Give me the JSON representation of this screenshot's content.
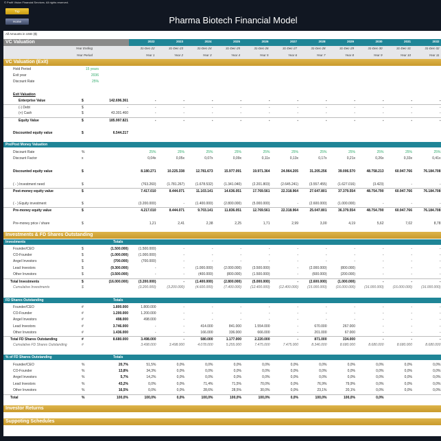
{
  "header": {
    "copyright": "© Profit Vision Financial Services. All rights reserved.",
    "top_button": "Top",
    "home_button": "Home",
    "title": "Pharma Biotech Financial Model",
    "amounts_note": "All Amounts in  USD ($)"
  },
  "timeline": {
    "title": "VC Valuation",
    "years": [
      "2022",
      "2023",
      "2024",
      "2025",
      "2026",
      "2027",
      "2028",
      "2029",
      "2030",
      "2031",
      "2032"
    ],
    "year_ending_label": "Year Ending",
    "dates": [
      "31-Dec-22",
      "31-Dec-23",
      "31-Dec-24",
      "31-Dec-25",
      "31-Dec-26",
      "31-Dec-27",
      "31-Dec-28",
      "31-Dec-29",
      "31-Dec-30",
      "31-Dec-31",
      "31-Dec-32"
    ],
    "period_label": "Year Period",
    "periods": [
      "Year 1",
      "Year 2",
      "Year 3",
      "Year 4",
      "Year 5",
      "Year 6",
      "Year 7",
      "Year 8",
      "Year 9",
      "Year 10",
      "Year 11"
    ]
  },
  "exit": {
    "title": "VC Valuation (Exit)",
    "inputs": [
      {
        "label": "Hold Period",
        "value": "15 years"
      },
      {
        "label": "Exit year",
        "value": "2036"
      },
      {
        "label": "Discount Rate",
        "value": "25%"
      }
    ],
    "exit_valuation_label": "Exit Valuation",
    "rows": [
      {
        "label": "Enterprise Value",
        "unit": "$",
        "total": "142.696.361",
        "values": [
          "-",
          "-",
          "-",
          "-",
          "-",
          "-",
          "-",
          "-",
          "-",
          "-",
          "-"
        ]
      },
      {
        "label": "(-) Debt",
        "unit": "$",
        "total": "-",
        "values": [
          "-",
          "-",
          "-",
          "-",
          "-",
          "-",
          "-",
          "-",
          "-",
          "-",
          "-"
        ]
      },
      {
        "label": "(+) Cash",
        "unit": "$",
        "total": "43.301.460",
        "values": [
          "-",
          "-",
          "-",
          "-",
          "-",
          "-",
          "-",
          "-",
          "-",
          "-",
          "-"
        ]
      },
      {
        "label": "Equity Value",
        "unit": "$",
        "total": "185.997.821",
        "values": [
          "-",
          "-",
          "-",
          "-",
          "-",
          "-",
          "-",
          "-",
          "-",
          "-",
          "-"
        ]
      },
      {
        "label": "Discounted equity value",
        "unit": "$",
        "total": "6.544.217",
        "values": [
          "",
          "",
          "",
          "",
          "",
          "",
          "",
          "",
          "",
          "",
          ""
        ]
      }
    ]
  },
  "pre_post": {
    "title": "Pre/Post Money Valuation",
    "rows": [
      {
        "label": "Discount Rate",
        "unit": "%",
        "total": "",
        "values": [
          "25%",
          "25%",
          "25%",
          "25%",
          "25%",
          "25%",
          "25%",
          "25%",
          "25%",
          "25%",
          "25%"
        ]
      },
      {
        "label": "Discount Factor",
        "unit": "x",
        "total": "",
        "values": [
          "0,04x",
          "0,05x",
          "0,07x",
          "0,09x",
          "0,11x",
          "0,13x",
          "0,17x",
          "0,21x",
          "0,26x",
          "0,33x",
          "0,41x"
        ]
      },
      {
        "label": "Discounted equity value",
        "unit": "$",
        "total": "",
        "values": [
          "8.180.271",
          "10.225.338",
          "12.781.673",
          "15.977.091",
          "19.971.364",
          "24.964.205",
          "31.205.256",
          "39.006.570",
          "48.758.213",
          "60.947.766",
          "76.184.708"
        ]
      },
      {
        "label": "( - ) Investment need",
        "unit": "$",
        "total": "",
        "values": [
          "(763.260)",
          "(1.781.267)",
          "(1.678.532)",
          "(1.341.040)",
          "(2.201.803)",
          "(2.645.241)",
          "(3.557.455)",
          "(1.627.016)",
          "(3.423)",
          "-",
          "-"
        ]
      },
      {
        "label": "Post-money equity value",
        "unit": "$",
        "total": "",
        "values": [
          "7.417.010",
          "8.444.071",
          "11.103.141",
          "14.636.051",
          "17.769.561",
          "22.318.964",
          "27.647.801",
          "37.379.554",
          "48.754.790",
          "60.947.766",
          "76.184.708"
        ]
      },
      {
        "label": "( - ) Equity investment",
        "unit": "$",
        "total": "",
        "values": [
          "(3.200.000)",
          "-",
          "(1.400.000)",
          "(2.800.000)",
          "(5.000.000)",
          "-",
          "(2.600.000)",
          "(1.000.000)",
          "-",
          "-",
          "-"
        ]
      },
      {
        "label": "Pre-money equity value",
        "unit": "$",
        "total": "",
        "values": [
          "4.217.010",
          "8.444.071",
          "9.703.141",
          "11.836.051",
          "12.769.561",
          "22.318.964",
          "25.047.801",
          "36.379.554",
          "48.754.790",
          "60.947.766",
          "76.184.708"
        ]
      },
      {
        "label": "Pre-money price / share",
        "unit": "$",
        "total": "",
        "values": [
          "1,21",
          "2,41",
          "2,38",
          "2,25",
          "1,71",
          "2,99",
          "3,00",
          "4,19",
          "5,62",
          "7,02",
          "8,78"
        ]
      }
    ]
  },
  "shares": {
    "title": "Investments & FD Shares Outstanding",
    "investments": {
      "title": "Investments",
      "totals_label": "Totals",
      "rows": [
        {
          "label": "Founder/CEO",
          "unit": "$",
          "total": "(1.500.000)",
          "values": [
            "(1.500.000)",
            "-",
            "-",
            "-",
            "-",
            "-",
            "-",
            "-",
            "-",
            "-",
            "-"
          ]
        },
        {
          "label": "CO-Founder",
          "unit": "$",
          "total": "(1.000.000)",
          "values": [
            "(1.000.000)",
            "-",
            "-",
            "-",
            "-",
            "-",
            "-",
            "-",
            "-",
            "-",
            "-"
          ]
        },
        {
          "label": "Angel Investors",
          "unit": "$",
          "total": "(700.000)",
          "values": [
            "(700.000)",
            "-",
            "-",
            "-",
            "-",
            "-",
            "-",
            "-",
            "-",
            "-",
            "-"
          ]
        },
        {
          "label": "Lead Investors",
          "unit": "$",
          "total": "(9.300.000)",
          "values": [
            "-",
            "-",
            "(1.000.000)",
            "(2.000.000)",
            "(3.500.000)",
            "-",
            "(2.000.000)",
            "(800.000)",
            "-",
            "-",
            "-"
          ]
        },
        {
          "label": "Other Investors",
          "unit": "$",
          "total": "(3.500.000)",
          "values": [
            "-",
            "-",
            "(400.000)",
            "(800.000)",
            "(1.500.000)",
            "-",
            "(600.000)",
            "(200.000)",
            "-",
            "-",
            "-"
          ]
        },
        {
          "label": "Total Investments",
          "unit": "$",
          "total": "(16.000.000)",
          "values": [
            "(3.200.000)",
            "-",
            "(1.400.000)",
            "(2.800.000)",
            "(5.000.000)",
            "-",
            "(2.600.000)",
            "(1.000.000)",
            "-",
            "-",
            "-"
          ]
        },
        {
          "label": "Cumulative Investments",
          "unit": "$",
          "total": "",
          "values": [
            "(3.200.000)",
            "(3.200.000)",
            "(4.600.000)",
            "(7.400.000)",
            "(12.400.000)",
            "(12.400.000)",
            "(15.000.000)",
            "(16.000.000)",
            "(16.000.000)",
            "(16.000.000)",
            "(16.000.000)"
          ]
        }
      ]
    },
    "fd": {
      "title": "FD Shares Outstanding",
      "totals_label": "Totals",
      "rows": [
        {
          "label": "Founder/CEO",
          "unit": "#",
          "total": "1.800.000",
          "values": [
            "1.800.000",
            "-",
            "-",
            "-",
            "-",
            "-",
            "-",
            "-",
            "-",
            "-",
            "-"
          ]
        },
        {
          "label": "CO-Founder",
          "unit": "#",
          "total": "1.200.000",
          "values": [
            "1.200.000",
            "-",
            "-",
            "-",
            "-",
            "-",
            "-",
            "-",
            "-",
            "-",
            "-"
          ]
        },
        {
          "label": "Angel Investors",
          "unit": "#",
          "total": "498.000",
          "values": [
            "498.000",
            "-",
            "-",
            "-",
            "-",
            "-",
            "-",
            "-",
            "-",
            "-",
            "-"
          ]
        },
        {
          "label": "Lead Investors",
          "unit": "#",
          "total": "3.746.000",
          "values": [
            "-",
            "-",
            "414.000",
            "841.000",
            "1.554.000",
            "-",
            "670.000",
            "267.000",
            "-",
            "-",
            "-"
          ]
        },
        {
          "label": "Other Investors",
          "unit": "#",
          "total": "1.436.000",
          "values": [
            "-",
            "-",
            "166.000",
            "336.000",
            "666.000",
            "-",
            "201.000",
            "67.000",
            "-",
            "-",
            "-"
          ]
        },
        {
          "label": "Total FD Shares Outstanding",
          "unit": "#",
          "total": "8.680.000",
          "values": [
            "3.498.000",
            "-",
            "580.000",
            "1.177.000",
            "2.220.000",
            "-",
            "871.000",
            "334.000",
            "-",
            "-",
            "-"
          ]
        },
        {
          "label": "Cumulative FD Shares Outstanding",
          "unit": "#",
          "total": "",
          "values": [
            "3.498.000",
            "3.498.000",
            "4.078.000",
            "5.255.000",
            "7.475.000",
            "7.475.000",
            "8.346.000",
            "8.680.000",
            "8.680.000",
            "8.680.000",
            "8.680.000"
          ]
        }
      ]
    },
    "pct": {
      "title": "% of FD Shares Outstanding",
      "totals_label": "Totals",
      "rows": [
        {
          "label": "Founder/CEO",
          "unit": "%",
          "total": "20,7%",
          "values": [
            "51,5%",
            "0,0%",
            "0,0%",
            "0,0%",
            "0,0%",
            "0,0%",
            "0,0%",
            "0,0%",
            "0,0%",
            "0,0%",
            "0,0%"
          ]
        },
        {
          "label": "CO-Founder",
          "unit": "%",
          "total": "13,8%",
          "values": [
            "34,3%",
            "0,0%",
            "0,0%",
            "0,0%",
            "0,0%",
            "0,0%",
            "0,0%",
            "0,0%",
            "0,0%",
            "0,0%",
            "0,0%"
          ]
        },
        {
          "label": "Angel Investors",
          "unit": "%",
          "total": "5,7%",
          "values": [
            "14,2%",
            "0,0%",
            "0,0%",
            "0,0%",
            "0,0%",
            "0,0%",
            "0,0%",
            "0,0%",
            "0,0%",
            "0,0%",
            "0,0%"
          ]
        },
        {
          "label": "Lead Investors",
          "unit": "%",
          "total": "43,2%",
          "values": [
            "0,0%",
            "0,0%",
            "71,4%",
            "71,5%",
            "70,0%",
            "0,0%",
            "76,9%",
            "79,9%",
            "0,0%",
            "0,0%",
            "0,0%"
          ]
        },
        {
          "label": "Other Investors",
          "unit": "%",
          "total": "16,5%",
          "values": [
            "0,0%",
            "0,0%",
            "28,6%",
            "28,5%",
            "30,0%",
            "0,0%",
            "23,1%",
            "20,1%",
            "0,0%",
            "0,0%",
            "0,0%"
          ]
        },
        {
          "label": "Total",
          "unit": "%",
          "total": "100,0%",
          "values": [
            "100,0%",
            "0,0%",
            "100,0%",
            "100,0%",
            "100,0%",
            "0,0%",
            "100,0%",
            "100,0%",
            "0,0%",
            "",
            ""
          ]
        }
      ]
    }
  },
  "footer_sections": [
    "Investor Returns",
    "Suppoting Schedules"
  ],
  "colors": {
    "header_bg": "#111722",
    "gold": "#d4a73a",
    "teal": "#1f8597",
    "gray": "#8a8a8a",
    "input_green": "#2eaa6a"
  }
}
